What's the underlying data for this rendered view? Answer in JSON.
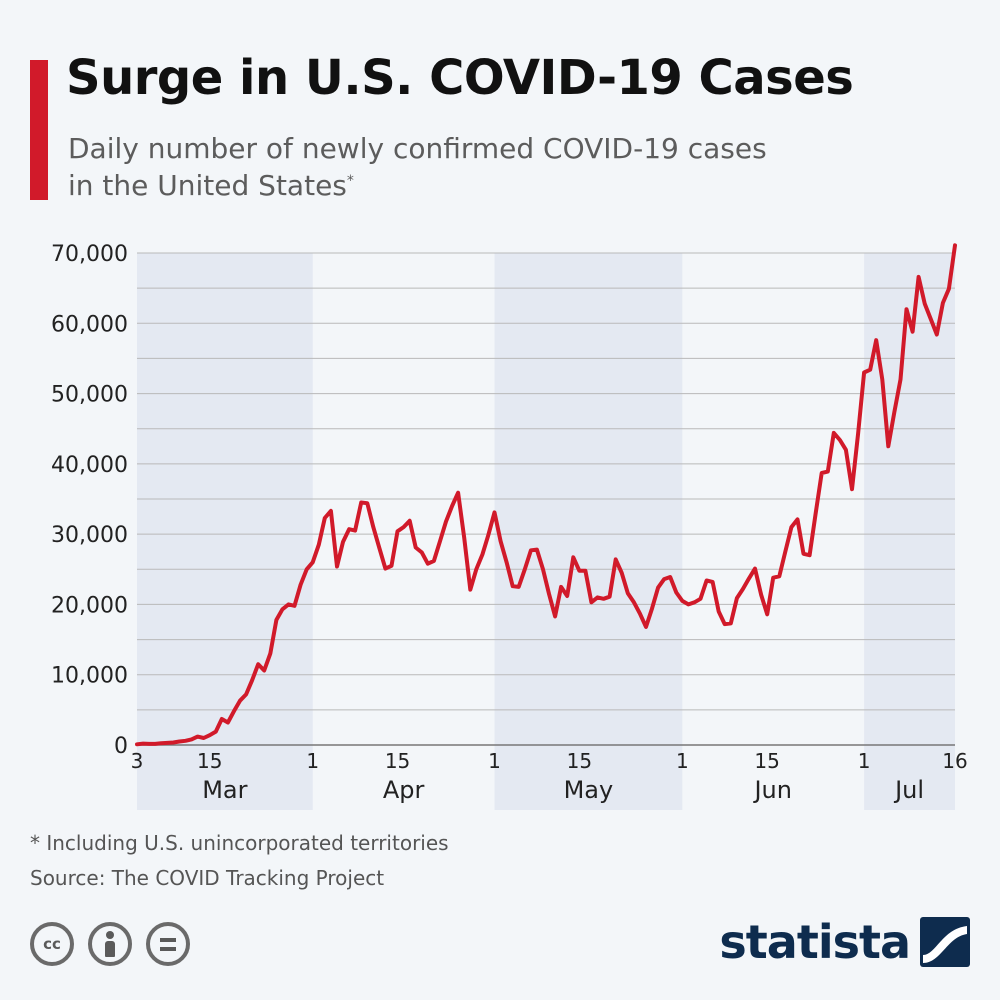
{
  "header": {
    "title": "Surge in U.S. COVID-19 Cases",
    "subtitle_line1": "Daily number of newly confirmed COVID-19 cases",
    "subtitle_line2": "in the United States",
    "subtitle_mark": "*"
  },
  "colors": {
    "accent": "#d11a2a",
    "line": "#d11a2a",
    "band": "#e4e9f2",
    "grid": "#b9b9b9",
    "brand": "#0e2c4e"
  },
  "chart_data": {
    "type": "line",
    "title": "Surge in U.S. COVID-19 Cases",
    "xlabel": "",
    "ylabel": "",
    "x_range": [
      "2020-03-03",
      "2020-07-16"
    ],
    "ylim": [
      0,
      70000
    ],
    "y_ticks": [
      0,
      10000,
      20000,
      30000,
      40000,
      50000,
      60000,
      70000
    ],
    "y_tick_labels": [
      "0",
      "10,000",
      "20,000",
      "30,000",
      "40,000",
      "50,000",
      "60,000",
      "70,000"
    ],
    "x_ticks": [
      {
        "date": "2020-03-03",
        "label": "3"
      },
      {
        "date": "2020-03-15",
        "label": "15"
      },
      {
        "date": "2020-04-01",
        "label": "1"
      },
      {
        "date": "2020-04-15",
        "label": "15"
      },
      {
        "date": "2020-05-01",
        "label": "1"
      },
      {
        "date": "2020-05-15",
        "label": "15"
      },
      {
        "date": "2020-06-01",
        "label": "1"
      },
      {
        "date": "2020-06-15",
        "label": "15"
      },
      {
        "date": "2020-07-01",
        "label": "1"
      },
      {
        "date": "2020-07-16",
        "label": "16"
      }
    ],
    "months": [
      {
        "label": "Mar",
        "start": "2020-03-03",
        "end": "2020-04-01",
        "shaded": true
      },
      {
        "label": "Apr",
        "start": "2020-04-01",
        "end": "2020-05-01",
        "shaded": false
      },
      {
        "label": "May",
        "start": "2020-05-01",
        "end": "2020-06-01",
        "shaded": true
      },
      {
        "label": "Jun",
        "start": "2020-06-01",
        "end": "2020-07-01",
        "shaded": false
      },
      {
        "label": "Jul",
        "start": "2020-07-01",
        "end": "2020-07-16",
        "shaded": true
      }
    ],
    "grid": true,
    "series": [
      {
        "start_date": "2020-03-03",
        "values": [
          100,
          200,
          150,
          150,
          250,
          300,
          350,
          500,
          600,
          800,
          1200,
          1000,
          1400,
          1900,
          3700,
          3200,
          4800,
          6300,
          7200,
          9200,
          11500,
          10600,
          13000,
          17800,
          19300,
          20000,
          19800,
          22800,
          25000,
          26000,
          28500,
          32300,
          33300,
          25400,
          28900,
          30700,
          30500,
          34500,
          34400,
          31000,
          28000,
          25100,
          25500,
          30400,
          31000,
          31900,
          28100,
          27400,
          25800,
          26200,
          29000,
          31800,
          34000,
          35900,
          29500,
          22100,
          25000,
          27100,
          29900,
          33100,
          29000,
          26000,
          22600,
          22500,
          25000,
          27700,
          27800,
          25000,
          21500,
          18300,
          22500,
          21200,
          26700,
          24800,
          24800,
          20300,
          21000,
          20800,
          21100,
          26400,
          24500,
          21600,
          20300,
          18700,
          16800,
          19400,
          22400,
          23600,
          23900,
          21700,
          20500,
          20000,
          20300,
          20800,
          23400,
          23200,
          19000,
          17200,
          17300,
          20900,
          22200,
          23700,
          25100,
          21400,
          18600,
          23800,
          24000,
          27500,
          31000,
          32100,
          27200,
          27000,
          32900,
          38700,
          38900,
          44400,
          43400,
          42000,
          36400,
          44300,
          53000,
          53400,
          57600,
          52000,
          42500,
          47400,
          52000,
          62000,
          58800,
          66600,
          62800,
          60600,
          58400,
          62900,
          64900,
          71100
        ]
      }
    ]
  },
  "footnote": "* Including U.S. unincorporated territories",
  "source": "Source: The COVID Tracking Project",
  "license_icons": [
    "cc-icon",
    "attribution-icon",
    "no-derivatives-icon"
  ],
  "license_cc_text": "cc",
  "brand": {
    "name": "statista",
    "logo_icon": "statista-wave-icon"
  }
}
